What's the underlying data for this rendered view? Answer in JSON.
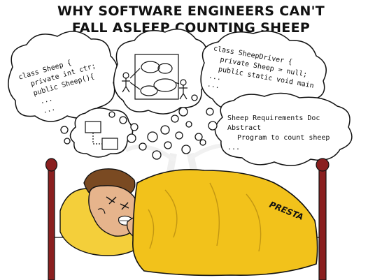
{
  "title": {
    "line1": "WHY SOFTWARE ENGINEERS CAN'T",
    "line2": "FALL ASLEEP COUNTING SHEEP"
  },
  "bubbles": {
    "sheep_class": {
      "lines": [
        "class Sheep {",
        "private int ctr;",
        "public Sheep(){",
        "...",
        "..."
      ]
    },
    "sheep_driver": {
      "lines": [
        "class SheepDriver {",
        "private Sheep = null;",
        "public static void main",
        "...",
        "..."
      ]
    },
    "requirements": {
      "lines": [
        "Sheep Requirements Doc",
        "Abstract",
        "Program to count sheep",
        "..."
      ]
    }
  },
  "signature": "PRESTA",
  "colors": {
    "blanket": "#f2c21b",
    "blanket_shadow": "#d9a80e",
    "bed_frame": "#8a1f1f",
    "pillow": "#f4cf3a",
    "skin": "#e6b48c",
    "hair": "#7a4a22",
    "watermark": "#e8e8e8"
  }
}
